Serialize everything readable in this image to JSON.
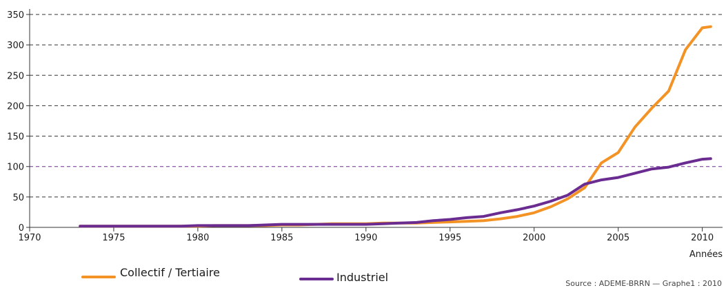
{
  "chart_data": {
    "type": "line",
    "title": "",
    "xlabel": "Années",
    "ylabel": "",
    "xlim": [
      1970,
      2011
    ],
    "ylim": [
      0,
      350
    ],
    "x_ticks": [
      1970,
      1975,
      1980,
      1985,
      1990,
      1995,
      2000,
      2005,
      2010
    ],
    "y_ticks": [
      0,
      50,
      100,
      150,
      200,
      250,
      300,
      350
    ],
    "grid": "horizontal dashed",
    "legend_placement": "bottom",
    "x": [
      1973,
      1974,
      1975,
      1976,
      1977,
      1978,
      1979,
      1980,
      1981,
      1982,
      1983,
      1984,
      1985,
      1986,
      1987,
      1988,
      1989,
      1990,
      1991,
      1992,
      1993,
      1994,
      1995,
      1996,
      1997,
      1998,
      1999,
      2000,
      2001,
      2002,
      2003,
      2004,
      2005,
      2006,
      2007,
      2008,
      2009,
      2010,
      2010.5
    ],
    "series": [
      {
        "name": "Collectif / Tertiaire",
        "color": "#f39325",
        "values": [
          2,
          2,
          2,
          2,
          2,
          2,
          2,
          2,
          3,
          3,
          3,
          3,
          4,
          4,
          5,
          6,
          6,
          6,
          7,
          7,
          7,
          8,
          9,
          10,
          11,
          14,
          18,
          24,
          34,
          47,
          65,
          106,
          123,
          165,
          196,
          224,
          292,
          328,
          330
        ]
      },
      {
        "name": "Industriel",
        "color": "#6a2c91",
        "values": [
          2,
          2,
          2,
          2,
          2,
          2,
          2,
          3,
          3,
          3,
          3,
          4,
          5,
          5,
          5,
          5,
          5,
          5,
          6,
          7,
          8,
          11,
          13,
          16,
          18,
          24,
          29,
          35,
          43,
          53,
          71,
          78,
          82,
          89,
          96,
          99,
          106,
          112,
          113
        ]
      }
    ]
  },
  "legend": {
    "collectif": "Collectif / Tertiaire",
    "industriel": "Industriel"
  },
  "source_text": "Source : ADEME-BRRN — Graphe1 : 2010"
}
